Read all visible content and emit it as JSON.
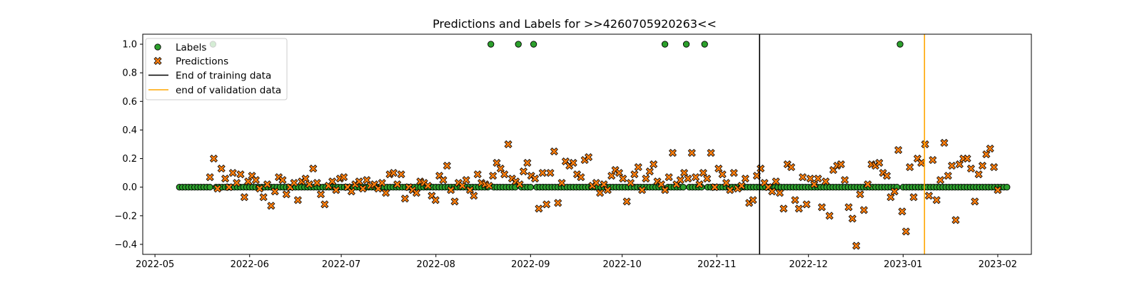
{
  "chart_data": {
    "type": "scatter",
    "title": "Predictions and Labels for >>4260705920263<<",
    "xlabel": "",
    "ylabel": "",
    "x_axis": {
      "type": "date",
      "range": [
        "2022-04-27",
        "2023-02-12"
      ],
      "ticks": [
        "2022-05-01",
        "2022-06-01",
        "2022-07-01",
        "2022-08-01",
        "2022-09-01",
        "2022-10-01",
        "2022-11-01",
        "2022-12-01",
        "2023-01-01",
        "2023-02-01"
      ],
      "tick_labels": [
        "2022-05",
        "2022-06",
        "2022-07",
        "2022-08",
        "2022-09",
        "2022-10",
        "2022-11",
        "2022-12",
        "2023-01",
        "2023-02"
      ]
    },
    "y_axis": {
      "range": [
        -0.47,
        1.07
      ],
      "ticks": [
        -0.4,
        -0.2,
        0.0,
        0.2,
        0.4,
        0.6,
        0.8,
        1.0
      ],
      "tick_labels": [
        "−0.4",
        "−0.2",
        "0.0",
        "0.2",
        "0.4",
        "0.6",
        "0.8",
        "1.0"
      ]
    },
    "grid": false,
    "legend": {
      "placement": "top-left",
      "entries": [
        "Labels",
        "Predictions",
        "End of training data",
        "end of validation data"
      ]
    },
    "series": [
      {
        "name": "Labels",
        "marker": "circle",
        "color": "#2ca02c",
        "date_range": [
          "2022-05-09",
          "2023-02-04"
        ],
        "default_value": 0,
        "positive_dates": [
          "2022-05-20",
          "2022-08-19",
          "2022-08-28",
          "2022-09-02",
          "2022-10-15",
          "2022-10-22",
          "2022-10-28",
          "2022-12-31"
        ]
      },
      {
        "name": "Predictions",
        "marker": "x",
        "color": "#ff7f0e",
        "date_range": [
          "2022-05-19",
          "2023-02-01"
        ],
        "values": [
          0.07,
          0.2,
          -0.01,
          0.13,
          0.06,
          0.0,
          0.1,
          0.03,
          0.09,
          -0.07,
          0.04,
          0.08,
          0.05,
          -0.01,
          -0.07,
          0.02,
          -0.13,
          -0.03,
          0.07,
          0.05,
          -0.05,
          0.0,
          0.03,
          -0.09,
          0.04,
          0.06,
          0.02,
          0.13,
          0.03,
          -0.05,
          -0.12,
          0.01,
          0.04,
          -0.02,
          0.06,
          0.07,
          0.0,
          -0.03,
          0.02,
          0.04,
          -0.01,
          0.05,
          0.01,
          0.02,
          -0.01,
          0.03,
          -0.04,
          0.09,
          0.1,
          0.02,
          0.09,
          -0.08,
          0.0,
          -0.02,
          -0.04,
          0.04,
          0.03,
          0.01,
          -0.06,
          -0.09,
          0.08,
          0.05,
          0.15,
          -0.02,
          -0.1,
          0.03,
          0.01,
          0.05,
          -0.02,
          -0.06,
          0.09,
          0.03,
          0.02,
          0.01,
          0.08,
          0.17,
          0.13,
          0.09,
          0.3,
          0.06,
          0.04,
          0.02,
          0.11,
          0.17,
          0.08,
          0.06,
          -0.15,
          0.1,
          -0.12,
          0.1,
          0.25,
          -0.11,
          0.03,
          0.18,
          0.15,
          0.17,
          0.09,
          0.07,
          0.19,
          0.21,
          0.01,
          0.03,
          -0.04,
          0.02,
          -0.02,
          0.08,
          0.12,
          0.1,
          0.06,
          -0.1,
          0.03,
          0.09,
          0.14,
          -0.02,
          0.06,
          0.11,
          0.16,
          0.04,
          0.02,
          -0.02,
          0.07,
          0.24,
          0.02,
          0.05,
          0.1,
          0.06,
          0.24,
          0.07,
          0.02,
          0.1,
          0.06,
          0.24,
          0.0,
          0.13,
          0.09,
          0.03,
          -0.02,
          0.1,
          -0.01,
          0.01,
          0.06,
          -0.11,
          -0.09,
          0.08,
          0.13,
          0.03,
          0.0,
          -0.03,
          0.04,
          -0.04,
          -0.15,
          0.16,
          0.14,
          -0.09,
          -0.15,
          0.07,
          -0.12,
          0.06,
          0.02,
          0.06,
          -0.14,
          0.04,
          -0.2,
          0.12,
          0.15,
          0.16,
          0.05,
          -0.14,
          -0.22,
          -0.41,
          -0.05,
          -0.16,
          0.02,
          0.16,
          0.15,
          0.17,
          0.1,
          0.08,
          -0.07,
          -0.03,
          0.26,
          -0.17,
          -0.31,
          0.14,
          -0.07,
          0.2,
          0.17,
          0.3,
          -0.06,
          0.19,
          -0.09,
          0.05,
          0.31,
          0.08,
          0.15,
          -0.23,
          0.16,
          0.2,
          0.2,
          0.13,
          -0.1,
          0.09,
          0.15,
          0.23,
          0.27,
          0.14,
          -0.02
        ]
      }
    ],
    "vertical_lines": [
      {
        "name": "End of training data",
        "date": "2022-11-15",
        "color": "#000000"
      },
      {
        "name": "end of validation data",
        "date": "2023-01-08",
        "color": "#ffa500"
      }
    ]
  }
}
